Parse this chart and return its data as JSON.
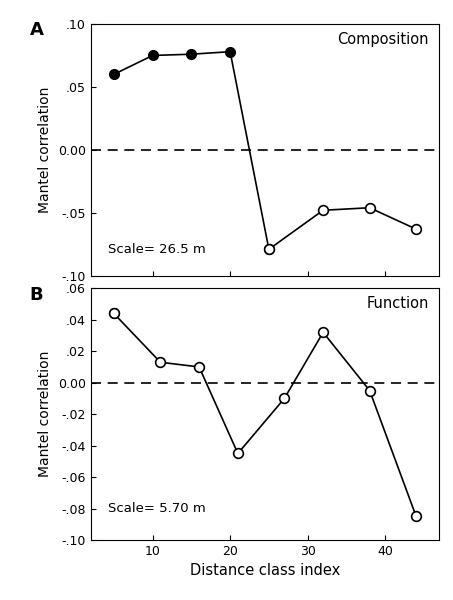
{
  "panel_A": {
    "title": "Composition",
    "label": "A",
    "scale_text": "Scale= 26.5 m",
    "ylim": [
      -0.1,
      0.1
    ],
    "yticks": [
      -0.1,
      -0.05,
      0.0,
      0.05,
      0.1
    ],
    "ytick_labels": [
      "-.10",
      "-.05",
      "0.00",
      ".05",
      ".10"
    ],
    "all_x": [
      5,
      10,
      15,
      20,
      25,
      32,
      38,
      44
    ],
    "all_y": [
      0.06,
      0.075,
      0.076,
      0.078,
      -0.079,
      -0.048,
      -0.046,
      -0.063
    ],
    "filled_idx": [
      0,
      1,
      2,
      3,
      4
    ],
    "open_idx": [
      4,
      5,
      6,
      7
    ]
  },
  "panel_B": {
    "title": "Function",
    "label": "B",
    "scale_text": "Scale= 5.70 m",
    "ylim": [
      -0.1,
      0.06
    ],
    "yticks": [
      -0.1,
      -0.08,
      -0.06,
      -0.04,
      -0.02,
      0.0,
      0.02,
      0.04,
      0.06
    ],
    "ytick_labels": [
      "-.10",
      "-.08",
      "-.06",
      "-.04",
      "-.02",
      "0.00",
      ".02",
      ".04",
      ".06"
    ],
    "all_x": [
      5,
      11,
      16,
      21,
      27,
      32,
      38,
      44
    ],
    "all_y": [
      0.044,
      0.013,
      0.01,
      -0.045,
      -0.01,
      0.032,
      -0.005,
      -0.085
    ],
    "filled_idx": [
      0
    ],
    "open_idx": [
      0,
      1,
      2,
      3,
      4,
      5,
      6,
      7
    ]
  },
  "xlabel": "Distance class index",
  "ylabel": "Mantel correlation",
  "xticks": [
    10,
    20,
    30,
    40
  ],
  "xlim": [
    2,
    47
  ]
}
